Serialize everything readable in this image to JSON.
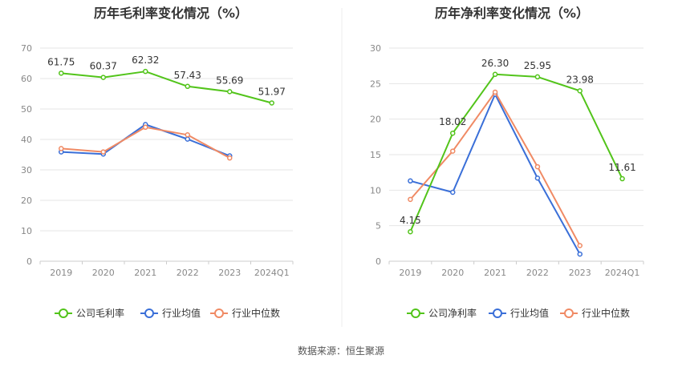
{
  "source": "数据来源：恒生聚源",
  "colors": {
    "company": "#52c41a",
    "industry_avg": "#3a6fd8",
    "industry_median": "#f08a64",
    "grid": "#e6e6e6",
    "axis_text": "#888888",
    "title": "#333333"
  },
  "chart_data": [
    {
      "type": "line",
      "title": "历年毛利率变化情况（%）",
      "categories": [
        "2019",
        "2020",
        "2021",
        "2022",
        "2023",
        "2024Q1"
      ],
      "ylim": [
        0,
        70
      ],
      "yticks": [
        0,
        10,
        20,
        30,
        40,
        50,
        60,
        70
      ],
      "grid": true,
      "legend_position": "bottom",
      "series": [
        {
          "name": "公司毛利率",
          "role": "company",
          "values": [
            61.75,
            60.37,
            62.32,
            57.43,
            55.69,
            51.97
          ],
          "labels": [
            "61.75",
            "60.37",
            "62.32",
            "57.43",
            "55.69",
            "51.97"
          ]
        },
        {
          "name": "行业均值",
          "role": "industry_avg",
          "values": [
            35.9,
            35.2,
            44.9,
            40.1,
            34.6,
            null
          ]
        },
        {
          "name": "行业中位数",
          "role": "industry_median",
          "values": [
            37.0,
            35.9,
            44.0,
            41.5,
            33.9,
            null
          ]
        }
      ]
    },
    {
      "type": "line",
      "title": "历年净利率变化情况（%）",
      "categories": [
        "2019",
        "2020",
        "2021",
        "2022",
        "2023",
        "2024Q1"
      ],
      "ylim": [
        0,
        30
      ],
      "yticks": [
        0,
        5,
        10,
        15,
        20,
        25,
        30
      ],
      "grid": true,
      "legend_position": "bottom",
      "series": [
        {
          "name": "公司净利率",
          "role": "company",
          "values": [
            4.15,
            18.02,
            26.3,
            25.95,
            23.98,
            11.61
          ],
          "labels": [
            "4.15",
            "18.02",
            "26.30",
            "25.95",
            "23.98",
            "11.61"
          ]
        },
        {
          "name": "行业均值",
          "role": "industry_avg",
          "values": [
            11.3,
            9.7,
            23.5,
            11.7,
            1.0,
            null
          ]
        },
        {
          "name": "行业中位数",
          "role": "industry_median",
          "values": [
            8.7,
            15.5,
            23.8,
            13.3,
            2.2,
            null
          ]
        }
      ]
    }
  ]
}
